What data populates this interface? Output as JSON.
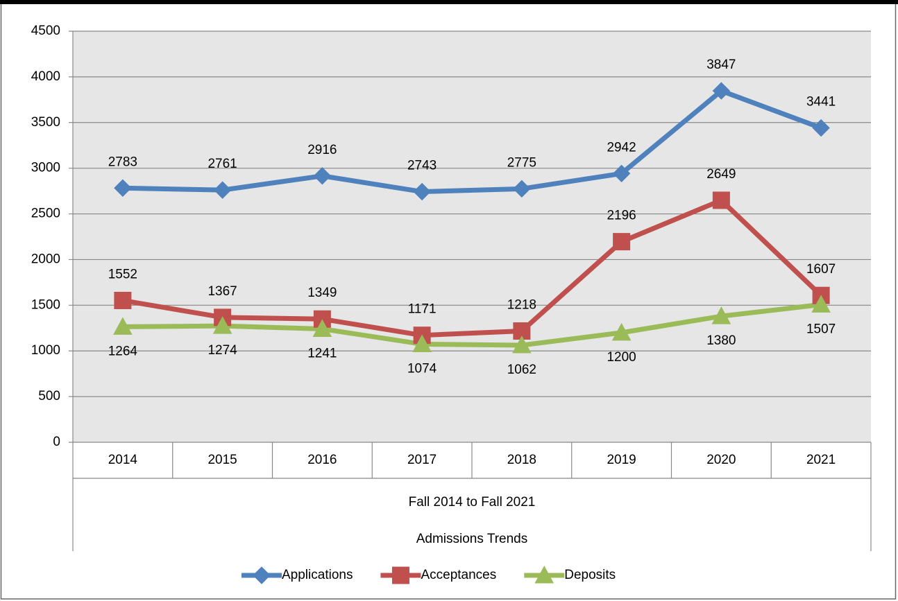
{
  "chart_data": {
    "type": "line",
    "categories": [
      "2014",
      "2015",
      "2016",
      "2017",
      "2018",
      "2019",
      "2020",
      "2021"
    ],
    "x_group_labels": [
      "Fall 2014 to Fall 2021",
      "Admissions Trends"
    ],
    "series": [
      {
        "name": "Applications",
        "color": "#4f81bd",
        "marker": "diamond",
        "label_position": "above",
        "values": [
          2783,
          2761,
          2916,
          2743,
          2775,
          2942,
          3847,
          3441
        ]
      },
      {
        "name": "Acceptances",
        "color": "#c0504d",
        "marker": "square",
        "label_position": "above",
        "values": [
          1552,
          1367,
          1349,
          1171,
          1218,
          2196,
          2649,
          1607
        ]
      },
      {
        "name": "Deposits",
        "color": "#9bbb59",
        "marker": "triangle",
        "label_position": "below",
        "values": [
          1264,
          1274,
          1241,
          1074,
          1062,
          1200,
          1380,
          1507
        ]
      }
    ],
    "ylim": [
      0,
      4500
    ],
    "yticks": [
      0,
      500,
      1000,
      1500,
      2000,
      2500,
      3000,
      3500,
      4000,
      4500
    ],
    "grid": true,
    "legend": "bottom"
  }
}
